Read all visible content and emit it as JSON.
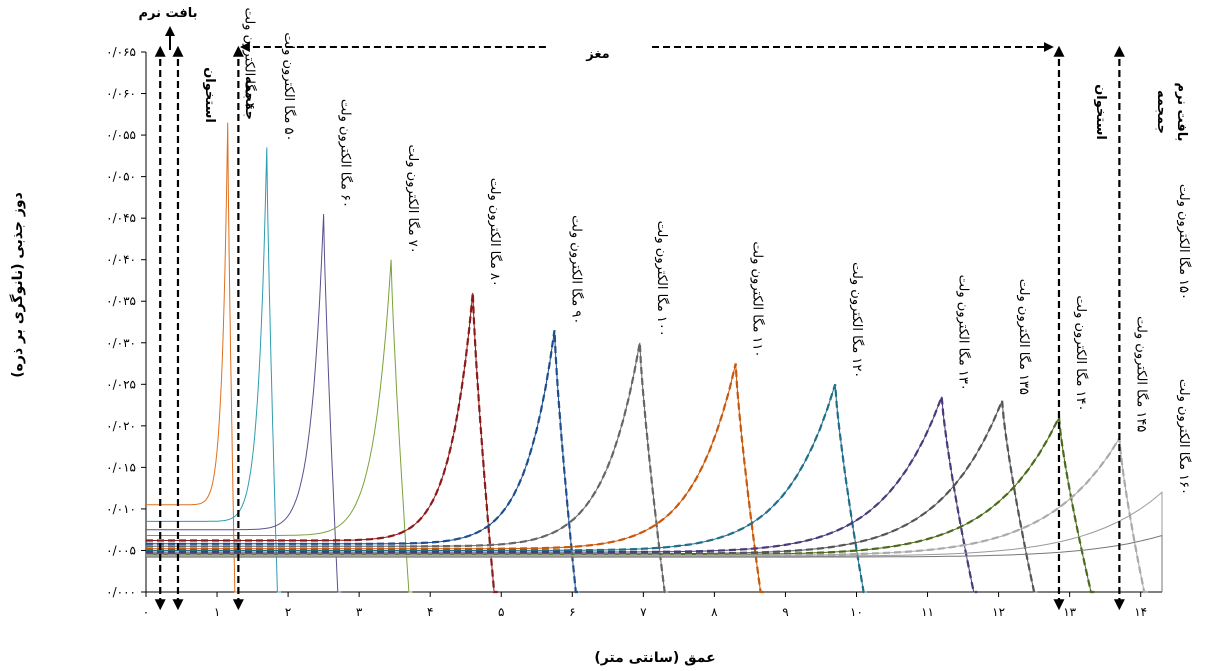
{
  "chart_data": {
    "type": "line",
    "xlabel": "عمق (سانتی متر)",
    "ylabel": "دوز جذبی (نانوگری بر ذره)",
    "xlim": [
      0,
      14.3
    ],
    "ylim": [
      0,
      0.065
    ],
    "x_ticks": [
      {
        "v": 0,
        "label": "۰"
      },
      {
        "v": 1,
        "label": "۱"
      },
      {
        "v": 2,
        "label": "۲"
      },
      {
        "v": 3,
        "label": "۳"
      },
      {
        "v": 4,
        "label": "۴"
      },
      {
        "v": 5,
        "label": "۵"
      },
      {
        "v": 6,
        "label": "۶"
      },
      {
        "v": 7,
        "label": "۷"
      },
      {
        "v": 8,
        "label": "۸"
      },
      {
        "v": 9,
        "label": "۹"
      },
      {
        "v": 10,
        "label": "۱۰"
      },
      {
        "v": 11,
        "label": "۱۱"
      },
      {
        "v": 12,
        "label": "۱۲"
      },
      {
        "v": 13,
        "label": "۱۳"
      },
      {
        "v": 14,
        "label": "۱۴"
      }
    ],
    "y_ticks": [
      {
        "v": 0,
        "label": "۰/۰۰۰"
      },
      {
        "v": 0.005,
        "label": "۰/۰۰۵"
      },
      {
        "v": 0.01,
        "label": "۰/۰۱۰"
      },
      {
        "v": 0.015,
        "label": "۰/۰۱۵"
      },
      {
        "v": 0.02,
        "label": "۰/۰۲۰"
      },
      {
        "v": 0.025,
        "label": "۰/۰۲۵"
      },
      {
        "v": 0.03,
        "label": "۰/۰۳۰"
      },
      {
        "v": 0.035,
        "label": "۰/۰۳۵"
      },
      {
        "v": 0.04,
        "label": "۰/۰۴۰"
      },
      {
        "v": 0.045,
        "label": "۰/۰۴۵"
      },
      {
        "v": 0.05,
        "label": "۰/۰۵۰"
      },
      {
        "v": 0.055,
        "label": "۰/۰۵۵"
      },
      {
        "v": 0.06,
        "label": "۰/۰۶۰"
      },
      {
        "v": 0.065,
        "label": "۰/۰۶۵"
      }
    ],
    "series": [
      {
        "energy": 40,
        "color": "#e07020",
        "dashed": false,
        "start": 0.0105,
        "peak_x": 1.15,
        "peak_y": 0.0565,
        "end_x": 1.25
      },
      {
        "energy": 50,
        "color": "#2e9cb0",
        "dashed": false,
        "start": 0.0085,
        "peak_x": 1.7,
        "peak_y": 0.0535,
        "end_x": 1.85
      },
      {
        "energy": 60,
        "color": "#5a4f8e",
        "dashed": false,
        "start": 0.0075,
        "peak_x": 2.5,
        "peak_y": 0.0455,
        "end_x": 2.7
      },
      {
        "energy": 70,
        "color": "#7aa23a",
        "dashed": false,
        "start": 0.0068,
        "peak_x": 3.45,
        "peak_y": 0.04,
        "end_x": 3.7
      },
      {
        "energy": 80,
        "color": "#8b1a1a",
        "dashed": true,
        "start": 0.0062,
        "peak_x": 4.6,
        "peak_y": 0.036,
        "end_x": 4.9
      },
      {
        "energy": 90,
        "color": "#1f4e8c",
        "dashed": true,
        "start": 0.0058,
        "peak_x": 5.75,
        "peak_y": 0.0315,
        "end_x": 6.05
      },
      {
        "energy": 100,
        "color": "#666666",
        "dashed": true,
        "start": 0.0055,
        "peak_x": 6.95,
        "peak_y": 0.03,
        "end_x": 7.3
      },
      {
        "energy": 110,
        "color": "#c9580a",
        "dashed": true,
        "start": 0.0052,
        "peak_x": 8.3,
        "peak_y": 0.0275,
        "end_x": 8.65
      },
      {
        "energy": 120,
        "color": "#1f6f8b",
        "dashed": true,
        "start": 0.005,
        "peak_x": 9.7,
        "peak_y": 0.025,
        "end_x": 10.1
      },
      {
        "energy": 130,
        "color": "#4a3a7a",
        "dashed": true,
        "start": 0.0048,
        "peak_x": 11.2,
        "peak_y": 0.0235,
        "end_x": 11.65
      },
      {
        "energy": 135,
        "color": "#555555",
        "dashed": true,
        "start": 0.0046,
        "peak_x": 12.05,
        "peak_y": 0.023,
        "end_x": 12.5
      },
      {
        "energy": 140,
        "color": "#4b6a1e",
        "dashed": true,
        "start": 0.0045,
        "peak_x": 12.85,
        "peak_y": 0.021,
        "end_x": 13.3
      },
      {
        "energy": 145,
        "color": "#aaaaaa",
        "dashed": true,
        "start": 0.0044,
        "peak_x": 13.7,
        "peak_y": 0.0185,
        "end_x": 14.05
      },
      {
        "energy": 150,
        "color": "#999999",
        "dashed": false,
        "start": 0.0043,
        "peak_x": 14.3,
        "peak_y": 0.012,
        "end_x": 14.3
      },
      {
        "energy": 160,
        "color": "#777777",
        "dashed": false,
        "start": 0.0042,
        "peak_x": 14.3,
        "peak_y": 0.0068,
        "end_x": 14.3
      }
    ]
  },
  "regions": {
    "soft_tissue": "بافت نرم",
    "bone": "استخوان",
    "skull": "جمجمه",
    "brain": "مغز"
  },
  "series_labels": [
    {
      "energy": 40,
      "text": "۴۰ مگا الکترون ولت"
    },
    {
      "energy": 50,
      "text": "۵۰ مگا الکترون ولت"
    },
    {
      "energy": 60,
      "text": "۶۰ مگا الکترون ولت"
    },
    {
      "energy": 70,
      "text": "۷۰ مگا الکترون ولت"
    },
    {
      "energy": 80,
      "text": "۸۰ مگا الکترون ولت"
    },
    {
      "energy": 90,
      "text": "۹۰ مگا الکترون ولت"
    },
    {
      "energy": 100,
      "text": "۱۰۰ مگا الکترون ولت"
    },
    {
      "energy": 110,
      "text": "۱۱۰ مگا الکترون ولت"
    },
    {
      "energy": 120,
      "text": "۱۲۰ مگا الکترون ولت"
    },
    {
      "energy": 130,
      "text": "۱۳۰ مگا الکترون ولت"
    },
    {
      "energy": 135,
      "text": "۱۳۵ مگا الکترون ولت"
    },
    {
      "energy": 140,
      "text": "۱۴۰ مگا الکترون ولت"
    },
    {
      "energy": 145,
      "text": "۱۴۵ مگا الکترون ولت"
    },
    {
      "energy": 150,
      "text": "۱۵۰ مگا الکترون ولت"
    },
    {
      "energy": 160,
      "text": "۱۶۰ مگا الکترون ولت"
    }
  ]
}
